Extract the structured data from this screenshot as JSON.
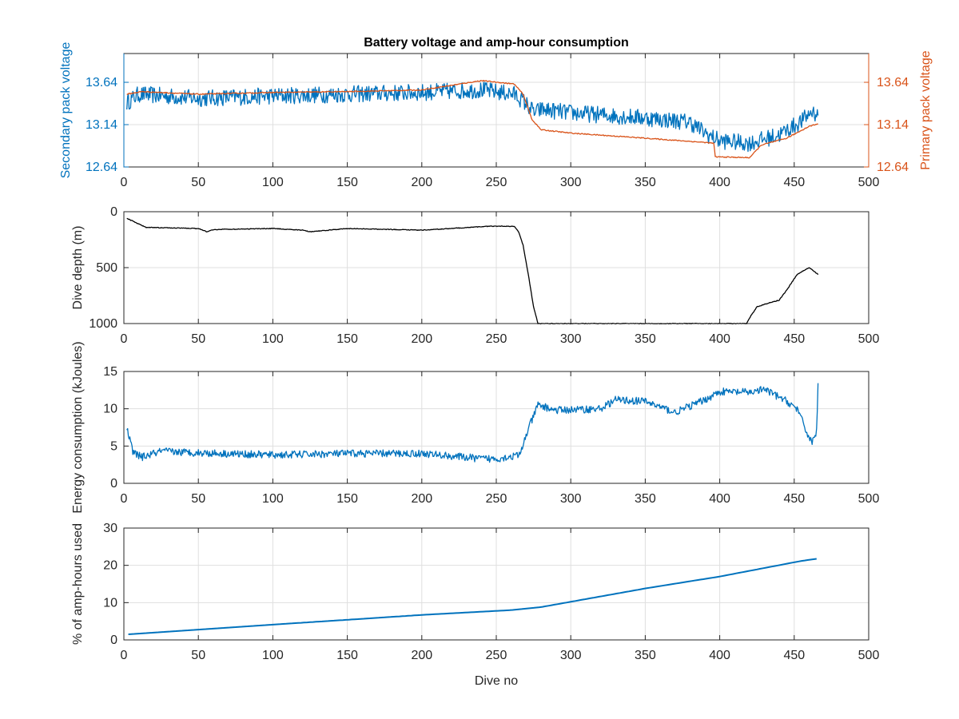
{
  "chart_data": [
    {
      "type": "line",
      "title": "Battery voltage and amp-hour consumption",
      "xlabel": "",
      "xlim": [
        0,
        500
      ],
      "xticks": [
        0,
        50,
        100,
        150,
        200,
        250,
        300,
        350,
        400,
        450,
        500
      ],
      "grid": true,
      "axes": [
        {
          "side": "left",
          "ylabel": "Secondary pack voltage",
          "ylim": [
            12.64,
            13.98
          ],
          "yticks": [
            12.64,
            13.14,
            13.64
          ],
          "ytick_labels": [
            "12.64",
            "13.14",
            "13.64"
          ],
          "color": "#0072bd"
        },
        {
          "side": "right",
          "ylabel": "Primary pack voltage",
          "ylim": [
            12.64,
            13.98
          ],
          "yticks": [
            12.64,
            13.14,
            13.64
          ],
          "ytick_labels": [
            "12.64",
            "13.14",
            "13.64"
          ],
          "color": "#d95319"
        }
      ],
      "series": [
        {
          "axis": "left",
          "color": "#0072bd",
          "noise": 0.1,
          "x": [
            2,
            10,
            50,
            100,
            150,
            200,
            240,
            262,
            268,
            276,
            280,
            300,
            350,
            380,
            392,
            400,
            420,
            440,
            455,
            462,
            466
          ],
          "y": [
            13.4,
            13.5,
            13.45,
            13.48,
            13.5,
            13.52,
            13.55,
            13.5,
            13.42,
            13.28,
            13.32,
            13.28,
            13.22,
            13.17,
            13.02,
            12.95,
            12.92,
            13.02,
            13.18,
            13.3,
            13.25
          ]
        },
        {
          "axis": "right",
          "color": "#d95319",
          "noise": 0.006,
          "x": [
            2,
            12,
            50,
            100,
            150,
            200,
            240,
            262,
            268,
            274,
            280,
            300,
            350,
            390,
            396,
            397,
            420,
            428,
            445,
            460,
            466
          ],
          "y": [
            13.5,
            13.53,
            13.5,
            13.52,
            13.53,
            13.55,
            13.66,
            13.62,
            13.5,
            13.2,
            13.08,
            13.04,
            12.98,
            12.93,
            12.92,
            12.76,
            12.75,
            12.9,
            12.98,
            13.12,
            13.15
          ]
        }
      ]
    },
    {
      "type": "line",
      "xlabel": "",
      "ylabel": "Dive depth (m)",
      "xlim": [
        0,
        500
      ],
      "ylim": [
        0,
        1000
      ],
      "y_reversed": true,
      "xticks": [
        0,
        50,
        100,
        150,
        200,
        250,
        300,
        350,
        400,
        450,
        500
      ],
      "yticks": [
        0,
        500,
        1000
      ],
      "grid": true,
      "series": [
        {
          "color": "#000000",
          "noise": 3,
          "x": [
            2,
            15,
            50,
            56,
            60,
            100,
            120,
            125,
            150,
            200,
            245,
            262,
            265,
            268,
            272,
            275,
            278,
            280,
            300,
            350,
            400,
            418,
            420,
            425,
            432,
            440,
            446,
            452,
            460,
            466
          ],
          "y": [
            60,
            140,
            150,
            180,
            160,
            150,
            165,
            180,
            150,
            165,
            130,
            130,
            180,
            300,
            600,
            850,
            1000,
            1000,
            1000,
            1000,
            1000,
            1000,
            950,
            850,
            820,
            790,
            680,
            560,
            500,
            560
          ]
        }
      ]
    },
    {
      "type": "line",
      "xlabel": "",
      "ylabel": "Energy consumption (kJoules)",
      "xlim": [
        0,
        500
      ],
      "ylim": [
        0,
        15
      ],
      "xticks": [
        0,
        50,
        100,
        150,
        200,
        250,
        300,
        350,
        400,
        450,
        500
      ],
      "yticks": [
        0,
        5,
        10,
        15
      ],
      "grid": true,
      "series": [
        {
          "color": "#0072bd",
          "noise": 0.5,
          "x": [
            2,
            6,
            12,
            25,
            50,
            100,
            150,
            200,
            240,
            250,
            260,
            266,
            270,
            278,
            290,
            320,
            330,
            350,
            370,
            390,
            400,
            420,
            430,
            445,
            452,
            458,
            462,
            465,
            466
          ],
          "y": [
            7.5,
            4.2,
            3.5,
            4.3,
            4.1,
            3.8,
            4.0,
            4.0,
            3.3,
            3.3,
            3.6,
            3.8,
            6.5,
            10.5,
            9.8,
            10.0,
            11.2,
            11.0,
            9.5,
            11.2,
            12.3,
            12.2,
            12.6,
            11.0,
            10.0,
            7.0,
            5.5,
            7.0,
            13.0
          ]
        }
      ]
    },
    {
      "type": "line",
      "xlabel": "Dive no",
      "ylabel": "% of amp-hours used",
      "xlim": [
        0,
        500
      ],
      "ylim": [
        0,
        30
      ],
      "xticks": [
        0,
        50,
        100,
        150,
        200,
        250,
        300,
        350,
        400,
        450,
        500
      ],
      "yticks": [
        0,
        10,
        20,
        30
      ],
      "grid": true,
      "series": [
        {
          "color": "#0072bd",
          "noise": 0,
          "x": [
            3,
            100,
            200,
            260,
            280,
            350,
            400,
            455,
            466
          ],
          "y": [
            1.5,
            4.1,
            6.7,
            8.0,
            8.8,
            13.8,
            17.0,
            21.2,
            21.8
          ]
        }
      ]
    }
  ]
}
